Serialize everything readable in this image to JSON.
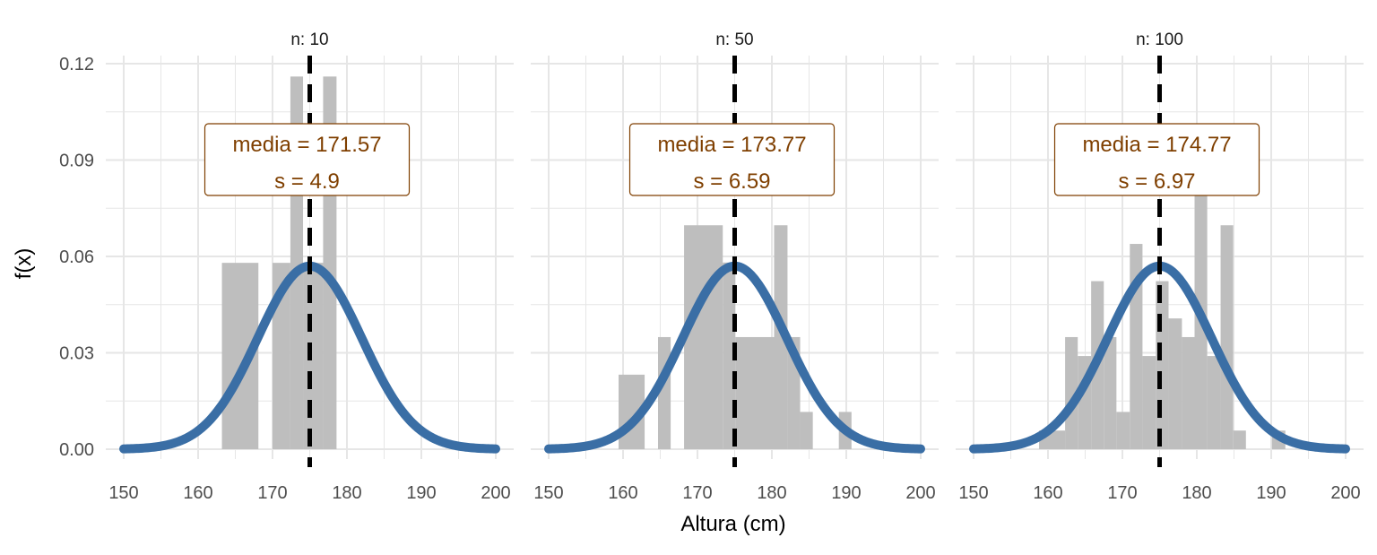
{
  "chart_data": {
    "type": "histogram-with-density",
    "xlabel": "Altura (cm)",
    "ylabel": "f(x)",
    "xlim": [
      150,
      200
    ],
    "ylim": [
      0,
      0.12
    ],
    "x_ticks": [
      "150",
      "160",
      "170",
      "180",
      "190",
      "200"
    ],
    "y_ticks": [
      "0.00",
      "0.03",
      "0.06",
      "0.09",
      "0.12"
    ],
    "grid": true,
    "reference_line_x": 175,
    "density": {
      "mean": 175,
      "sd": 7
    },
    "colors": {
      "bars": "#bebebe",
      "curve": "#3a6ea5",
      "label_text": "#7f3f00",
      "label_border": "#7f3f00",
      "grid": "#e6e6e6",
      "vline": "#000000"
    },
    "panels": [
      {
        "title": "n: 10",
        "stat_lines": [
          "media = 171.57",
          "s = 4.9"
        ],
        "bins": [
          {
            "x0": 163.2,
            "x1": 168.1,
            "y": 0.058
          },
          {
            "x0": 170.0,
            "x1": 172.4,
            "y": 0.058
          },
          {
            "x0": 172.4,
            "x1": 174.1,
            "y": 0.116
          },
          {
            "x0": 174.1,
            "x1": 176.8,
            "y": 0.058
          },
          {
            "x0": 176.8,
            "x1": 178.6,
            "y": 0.116
          }
        ]
      },
      {
        "title": "n: 50",
        "stat_lines": [
          "media = 173.77",
          "s = 6.59"
        ],
        "bins": [
          {
            "x0": 159.4,
            "x1": 162.9,
            "y": 0.0232
          },
          {
            "x0": 164.7,
            "x1": 166.4,
            "y": 0.0349
          },
          {
            "x0": 168.2,
            "x1": 173.4,
            "y": 0.0697
          },
          {
            "x0": 173.4,
            "x1": 175.1,
            "y": 0.0581
          },
          {
            "x0": 175.1,
            "x1": 180.3,
            "y": 0.0349
          },
          {
            "x0": 180.3,
            "x1": 182.1,
            "y": 0.0697
          },
          {
            "x0": 182.1,
            "x1": 183.8,
            "y": 0.0349
          },
          {
            "x0": 183.8,
            "x1": 185.5,
            "y": 0.0116
          },
          {
            "x0": 189.0,
            "x1": 190.7,
            "y": 0.0116
          }
        ]
      },
      {
        "title": "n: 100",
        "stat_lines": [
          "media = 174.77",
          "s = 6.97"
        ],
        "bins": [
          {
            "x0": 158.8,
            "x1": 162.3,
            "y": 0.0058
          },
          {
            "x0": 162.3,
            "x1": 164.0,
            "y": 0.0349
          },
          {
            "x0": 164.0,
            "x1": 165.8,
            "y": 0.029
          },
          {
            "x0": 165.8,
            "x1": 167.5,
            "y": 0.0523
          },
          {
            "x0": 167.5,
            "x1": 169.2,
            "y": 0.0349
          },
          {
            "x0": 169.2,
            "x1": 171.0,
            "y": 0.0116
          },
          {
            "x0": 171.0,
            "x1": 172.7,
            "y": 0.0639
          },
          {
            "x0": 172.7,
            "x1": 174.5,
            "y": 0.029
          },
          {
            "x0": 174.5,
            "x1": 176.2,
            "y": 0.0523
          },
          {
            "x0": 176.2,
            "x1": 178.0,
            "y": 0.0407
          },
          {
            "x0": 178.0,
            "x1": 179.7,
            "y": 0.0349
          },
          {
            "x0": 179.7,
            "x1": 181.4,
            "y": 0.0813
          },
          {
            "x0": 181.4,
            "x1": 183.2,
            "y": 0.029
          },
          {
            "x0": 183.2,
            "x1": 184.9,
            "y": 0.0697
          },
          {
            "x0": 184.9,
            "x1": 186.6,
            "y": 0.0058
          },
          {
            "x0": 190.1,
            "x1": 191.9,
            "y": 0.0058
          }
        ]
      }
    ]
  }
}
